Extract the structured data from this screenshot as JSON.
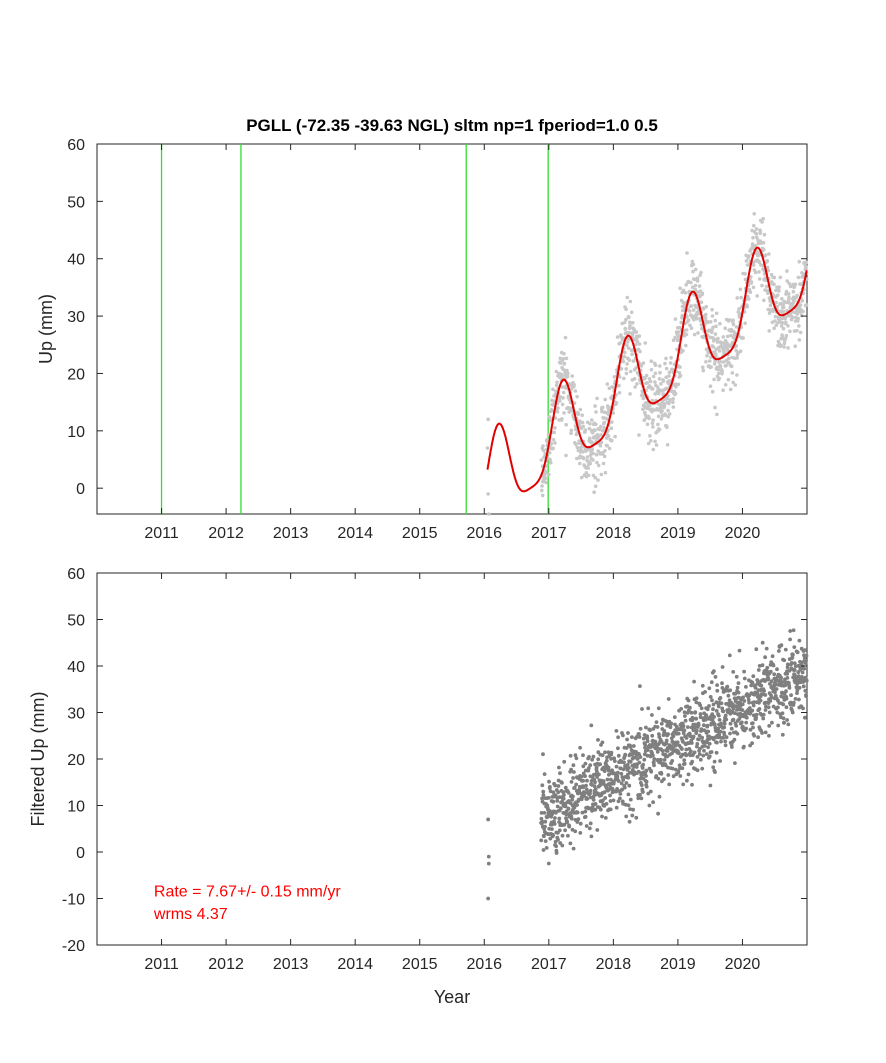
{
  "chart_data": [
    {
      "type": "scatter",
      "title": "PGLL (-72.35 -39.63 NGL) sltm np=1 fperiod=1.0 0.5",
      "xlabel": "",
      "ylabel": "Up (mm)",
      "xlim": [
        2010.0,
        2021.0
      ],
      "ylim": [
        -4.5,
        60
      ],
      "xticks": [
        2011,
        2012,
        2013,
        2014,
        2015,
        2016,
        2017,
        2018,
        2019,
        2020
      ],
      "xtick_labels": [
        "2011",
        "2012",
        "2013",
        "2014",
        "2015",
        "2016",
        "2017",
        "2018",
        "2019",
        "2020"
      ],
      "yticks": [
        0,
        10,
        20,
        30,
        40,
        50,
        60
      ],
      "ytick_labels": [
        "0",
        "10",
        "20",
        "30",
        "40",
        "50",
        "60"
      ],
      "grid": false,
      "vertical_lines": {
        "color": "#33dd33",
        "x": [
          2011.0,
          2012.23,
          2015.72,
          2016.99
        ]
      },
      "series": [
        {
          "kind": "scatter",
          "color": "#c8c8c8",
          "description": "daily observations ~2016.0-2021.0",
          "start": 2016.05,
          "end": 2021.0,
          "model": {
            "offset": 0.6,
            "rate": 7.67,
            "ann_amp": 7.5,
            "ann_peak": 2020.22,
            "semi_amp": 1.8,
            "semi_peak": 2020.22,
            "scatter": 3.2
          },
          "sparse_anchor_points": [
            [
              2016.05,
              7
            ],
            [
              2016.06,
              -1
            ],
            [
              2016.07,
              -4.5
            ],
            [
              2016.06,
              12
            ]
          ]
        },
        {
          "kind": "line",
          "color": "#e00000",
          "description": "fitted model curve",
          "x_range": [
            2016.05,
            2021.0
          ],
          "model": {
            "offset": 0.6,
            "rate": 7.67,
            "ann_amp": 7.5,
            "ann_peak": 2020.22,
            "semi_amp": 1.8,
            "semi_peak": 2020.22
          }
        }
      ]
    },
    {
      "type": "scatter",
      "title": "",
      "xlabel": "Year",
      "ylabel": "Filtered Up (mm)",
      "xlim": [
        2010.0,
        2021.0
      ],
      "ylim": [
        -20,
        60
      ],
      "xticks": [
        2011,
        2012,
        2013,
        2014,
        2015,
        2016,
        2017,
        2018,
        2019,
        2020
      ],
      "xtick_labels": [
        "2011",
        "2012",
        "2013",
        "2014",
        "2015",
        "2016",
        "2017",
        "2018",
        "2019",
        "2020"
      ],
      "yticks": [
        -20,
        -10,
        0,
        10,
        20,
        30,
        40,
        50,
        60
      ],
      "ytick_labels": [
        "-20",
        "-10",
        "0",
        "10",
        "20",
        "30",
        "40",
        "50",
        "60"
      ],
      "grid": false,
      "series": [
        {
          "kind": "scatter",
          "color": "#7f7f7f",
          "description": "filtered daily observations ~2016.9-2021.0",
          "start": 2016.88,
          "end": 2021.0,
          "model": {
            "offset": -122.2,
            "rate": 7.67,
            "base_year": 2000,
            "scatter": 4.37
          },
          "sparse_anchor_points": [
            [
              2016.06,
              7
            ],
            [
              2016.07,
              -1
            ],
            [
              2016.07,
              -2.5
            ],
            [
              2016.06,
              -10
            ]
          ]
        }
      ],
      "annotations": [
        {
          "text": "Rate = 7.67+/- 0.15 mm/yr",
          "x": 2010.2,
          "y": -10,
          "color": "#ff0000"
        },
        {
          "text": "wrms 4.37",
          "x": 2010.2,
          "y": -14.8,
          "color": "#ff0000"
        }
      ]
    }
  ]
}
